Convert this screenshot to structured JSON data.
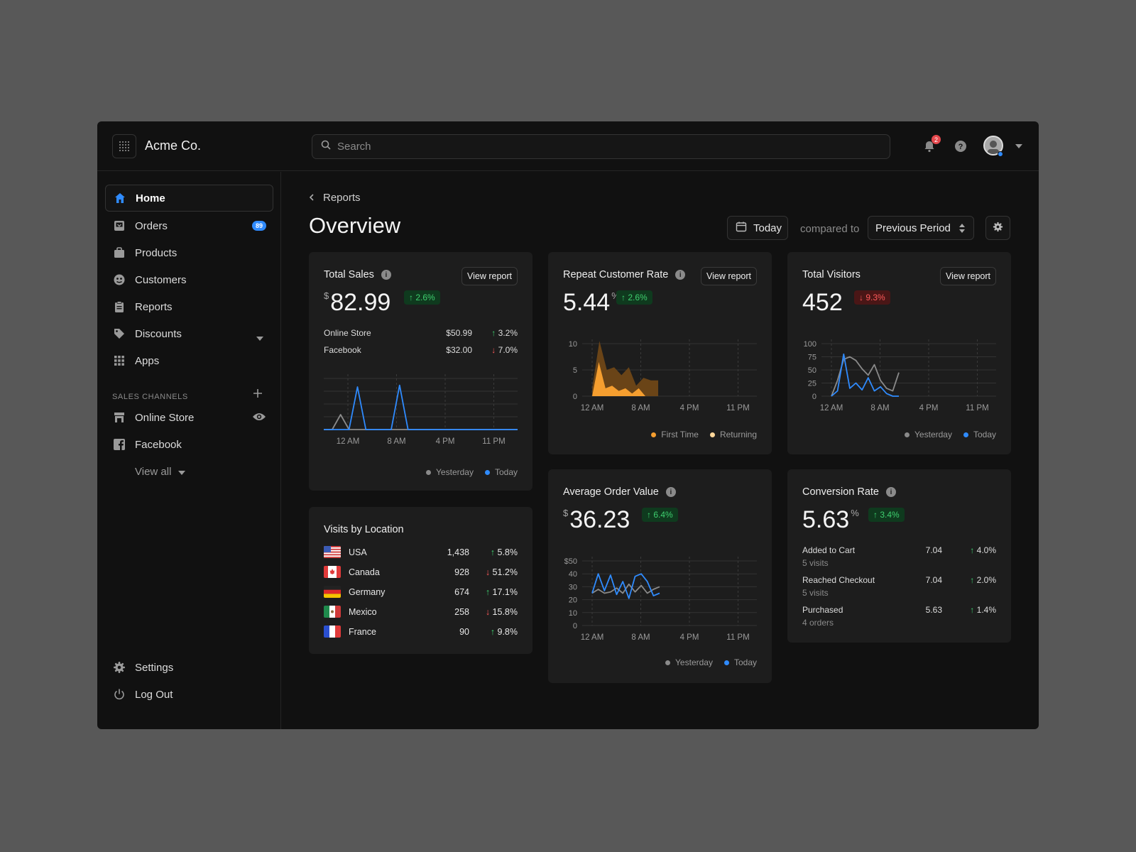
{
  "app": {
    "brand": "Acme Co."
  },
  "search": {
    "placeholder": "Search"
  },
  "header": {
    "notifications_count": "2"
  },
  "sidebar": {
    "items": [
      {
        "label": "Home"
      },
      {
        "label": "Orders",
        "badge": "89"
      },
      {
        "label": "Products"
      },
      {
        "label": "Customers"
      },
      {
        "label": "Reports"
      },
      {
        "label": "Discounts"
      },
      {
        "label": "Apps"
      }
    ],
    "sales_channels_label": "SALES CHANNELS",
    "channels": [
      {
        "label": "Online Store"
      },
      {
        "label": "Facebook"
      }
    ],
    "view_all": "View all",
    "settings": "Settings",
    "logout": "Log Out"
  },
  "page": {
    "breadcrumb": "Reports",
    "title": "Overview",
    "date_button": "Today",
    "compared_to": "compared to",
    "period_select": "Previous Period"
  },
  "cards": {
    "total_sales": {
      "title": "Total Sales",
      "view_report": "View report",
      "currency": "$",
      "value": "82.99",
      "delta": "2.6%",
      "rows": [
        {
          "label": "Online Store",
          "value": "$50.99",
          "delta": "3.2%",
          "direction": "up"
        },
        {
          "label": "Facebook",
          "value": "$32.00",
          "delta": "7.0%",
          "direction": "down"
        }
      ],
      "legend": [
        "Yesterday",
        "Today"
      ]
    },
    "repeat_rate": {
      "title": "Repeat Customer Rate",
      "view_report": "View report",
      "value": "5.44",
      "suffix": "%",
      "delta": "2.6%",
      "legend": [
        "First Time",
        "Returning"
      ]
    },
    "total_visitors": {
      "title": "Total Visitors",
      "view_report": "View report",
      "value": "452",
      "delta": "9.3%",
      "legend": [
        "Yesterday",
        "Today"
      ]
    },
    "visits_by_location": {
      "title": "Visits by Location",
      "rows": [
        {
          "country": "USA",
          "visits": "1,438",
          "delta": "5.8%",
          "direction": "up"
        },
        {
          "country": "Canada",
          "visits": "928",
          "delta": "51.2%",
          "direction": "down"
        },
        {
          "country": "Germany",
          "visits": "674",
          "delta": "17.1%",
          "direction": "up"
        },
        {
          "country": "Mexico",
          "visits": "258",
          "delta": "15.8%",
          "direction": "down"
        },
        {
          "country": "France",
          "visits": "90",
          "delta": "9.8%",
          "direction": "up"
        }
      ]
    },
    "avg_order": {
      "title": "Average Order Value",
      "currency": "$",
      "value": "36.23",
      "delta": "6.4%",
      "legend": [
        "Yesterday",
        "Today"
      ]
    },
    "conversion": {
      "title": "Conversion Rate",
      "value": "5.63",
      "suffix": "%",
      "delta": "3.4%",
      "rows": [
        {
          "label": "Added to Cart",
          "sub": "5 visits",
          "value": "7.04",
          "delta": "4.0%"
        },
        {
          "label": "Reached Checkout",
          "sub": "5 visits",
          "value": "7.04",
          "delta": "2.0%"
        },
        {
          "label": "Purchased",
          "sub": "4 orders",
          "value": "5.63",
          "delta": "1.4%"
        }
      ]
    }
  },
  "chart_data": [
    {
      "id": "total_sales",
      "type": "line",
      "x_ticks": [
        "12 AM",
        "8 AM",
        "4 PM",
        "11 PM"
      ],
      "series": [
        {
          "name": "Yesterday",
          "color": "#8a8a8a",
          "values": [
            0,
            0,
            0.35,
            0,
            0,
            0,
            0,
            0,
            0,
            0,
            0,
            0,
            0,
            0,
            0,
            0,
            0,
            0,
            0,
            0,
            0,
            0,
            0,
            0
          ]
        },
        {
          "name": "Today",
          "color": "#2f8bff",
          "values": [
            0,
            0,
            0,
            0,
            1,
            0,
            0,
            0,
            0,
            1.04,
            0,
            0,
            0,
            0,
            0,
            0,
            0,
            0,
            0,
            0,
            0,
            0,
            0,
            0
          ]
        }
      ],
      "ylim": [
        0,
        1.2
      ]
    },
    {
      "id": "repeat_rate",
      "type": "area",
      "x_ticks": [
        "12 AM",
        "8 AM",
        "4 PM",
        "11 PM"
      ],
      "y_ticks": [
        "10",
        "5",
        "0"
      ],
      "ylim": [
        0,
        10
      ],
      "series": [
        {
          "name": "First Time",
          "color": "#f59e2f",
          "values": [
            0,
            6.5,
            1.5,
            2,
            1,
            1.5,
            0.5,
            1.5,
            0
          ]
        },
        {
          "name": "Returning",
          "color": "#ffd79a",
          "values": [
            1.5,
            10.5,
            5,
            5.5,
            4,
            5.5,
            2,
            3.5,
            3,
            3
          ]
        }
      ]
    },
    {
      "id": "total_visitors",
      "type": "line",
      "x_ticks": [
        "12 AM",
        "8 AM",
        "4 PM",
        "11 PM"
      ],
      "y_ticks": [
        "100",
        "75",
        "50",
        "25",
        "0"
      ],
      "ylim": [
        0,
        100
      ],
      "series": [
        {
          "name": "Yesterday",
          "color": "#8a8a8a",
          "values": [
            0,
            30,
            70,
            75,
            68,
            52,
            40,
            60,
            30,
            15,
            10,
            45
          ]
        },
        {
          "name": "Today",
          "color": "#2f8bff",
          "values": [
            0,
            10,
            80,
            15,
            25,
            12,
            35,
            10,
            18,
            5,
            0,
            0
          ]
        }
      ]
    },
    {
      "id": "avg_order",
      "type": "line",
      "x_ticks": [
        "12 AM",
        "8 AM",
        "4 PM",
        "11 PM"
      ],
      "y_ticks": [
        "$50",
        "40",
        "30",
        "20",
        "10",
        "0"
      ],
      "ylim": [
        0,
        50
      ],
      "series": [
        {
          "name": "Yesterday",
          "color": "#8a8a8a",
          "values": [
            25,
            28,
            25,
            26,
            29,
            25,
            32,
            26,
            31,
            25,
            28,
            30
          ]
        },
        {
          "name": "Today",
          "color": "#2f8bff",
          "values": [
            25,
            40,
            27,
            39,
            24,
            34,
            21,
            38,
            40,
            34,
            23,
            25
          ]
        }
      ]
    }
  ]
}
